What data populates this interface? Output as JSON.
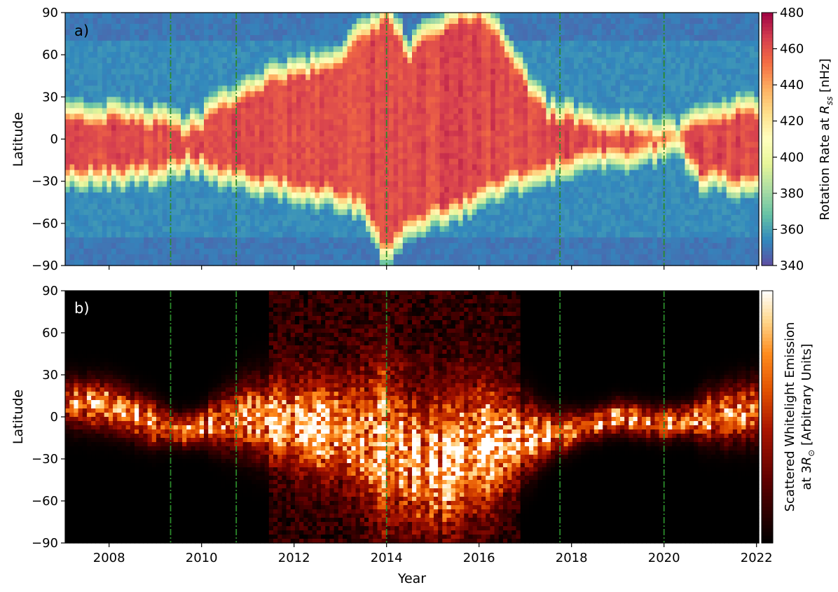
{
  "chart_data": [
    {
      "type": "heatmap",
      "panel_label": "a)",
      "ylabel": "Latitude",
      "xlabel": "",
      "xlim": [
        2007.05,
        2022.05
      ],
      "ylim": [
        -90,
        90
      ],
      "yticks": [
        -90,
        -60,
        -30,
        0,
        30,
        60,
        90
      ],
      "ytick_labels": [
        "−90",
        "−60",
        "−30",
        "0",
        "30",
        "60",
        "90"
      ],
      "xticks": [
        2008,
        2010,
        2012,
        2014,
        2016,
        2018,
        2020,
        2022
      ],
      "xtick_labels_shown": false,
      "vlines": [
        2009.33,
        2010.75,
        2014.0,
        2017.75,
        2020.0
      ],
      "vline_color": "#2a8a2a",
      "colorbar": {
        "label_prefix": "Rotation Rate at ",
        "label_symbol": "R",
        "label_sub": "ss",
        "label_suffix": " [nHz]",
        "range": [
          340,
          480
        ],
        "ticks": [
          340,
          360,
          380,
          400,
          420,
          440,
          460,
          480
        ],
        "colormap": "Spectral_r"
      },
      "band": {
        "description_unused": "",
        "background_value": 355,
        "active_value": 462
      },
      "band_edges": {
        "years": [
          2007.05,
          2008.0,
          2009.0,
          2009.6,
          2010.0,
          2010.5,
          2011.0,
          2012.0,
          2013.0,
          2013.5,
          2014.0,
          2014.5,
          2015.0,
          2015.5,
          2016.0,
          2016.5,
          2017.0,
          2017.5,
          2018.0,
          2019.0,
          2019.8,
          2020.3,
          2020.8,
          2021.3,
          2022.05
        ],
        "north": [
          20,
          20,
          18,
          10,
          15,
          30,
          40,
          50,
          60,
          80,
          90,
          65,
          80,
          90,
          90,
          75,
          45,
          22,
          18,
          12,
          8,
          5,
          18,
          22,
          25
        ],
        "south": [
          -28,
          -28,
          -26,
          -18,
          -20,
          -28,
          -32,
          -38,
          -45,
          -52,
          -85,
          -65,
          -58,
          -52,
          -45,
          -35,
          -30,
          -25,
          -18,
          -15,
          -10,
          -5,
          -30,
          -32,
          -35
        ]
      }
    },
    {
      "type": "heatmap",
      "panel_label": "b)",
      "ylabel": "Latitude",
      "xlabel": "Year",
      "xlim": [
        2007.05,
        2022.05
      ],
      "ylim": [
        -90,
        90
      ],
      "yticks": [
        -90,
        -60,
        -30,
        0,
        30,
        60,
        90
      ],
      "ytick_labels": [
        "−90",
        "−60",
        "−30",
        "0",
        "30",
        "60",
        "90"
      ],
      "xticks": [
        2008,
        2010,
        2012,
        2014,
        2016,
        2018,
        2020,
        2022
      ],
      "xtick_labels": [
        "2008",
        "2010",
        "2012",
        "2014",
        "2016",
        "2018",
        "2020",
        "2022"
      ],
      "vlines": [
        2009.33,
        2010.75,
        2014.0,
        2017.75,
        2020.0
      ],
      "vline_color": "#2a8a2a",
      "colorbar": {
        "label_line1": "Scattered Whitelight Emission",
        "label_line2_prefix": "at 3",
        "label_line2_symbol": "R",
        "label_line2_sub": "⊙",
        "label_line2_suffix": " [Arbitrary Units]",
        "colormap": "gist_heat"
      },
      "streamer_belt_center": {
        "years": [
          2007.05,
          2008.0,
          2009.0,
          2009.6,
          2010.3,
          2011.0,
          2012.0,
          2013.0,
          2014.0,
          2014.8,
          2015.5,
          2016.3,
          2017.0,
          2018.0,
          2019.0,
          2020.0,
          2021.0,
          2022.05
        ],
        "lat": [
          10,
          8,
          -5,
          -10,
          -5,
          0,
          -5,
          -10,
          -20,
          -35,
          -30,
          -20,
          -15,
          -10,
          0,
          -5,
          0,
          5
        ]
      }
    }
  ]
}
